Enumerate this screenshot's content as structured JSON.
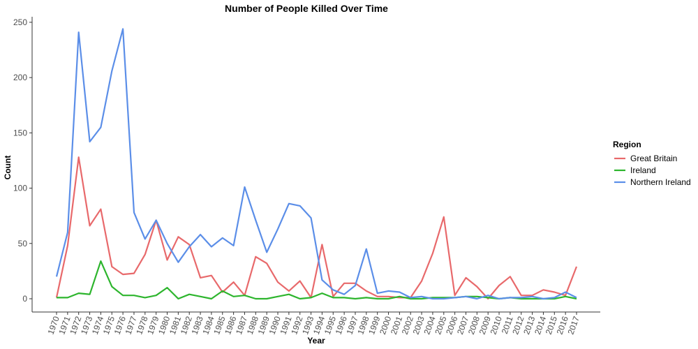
{
  "chart_data": {
    "type": "line",
    "title": "Number of People Killed Over Time",
    "xlabel": "Year",
    "ylabel": "Count",
    "legend_title": "Region",
    "legend_position": "right",
    "grid": false,
    "ylim": [
      -12,
      255
    ],
    "yticks": [
      0,
      50,
      100,
      150,
      200,
      250
    ],
    "x": [
      1970,
      1971,
      1972,
      1973,
      1974,
      1975,
      1976,
      1977,
      1978,
      1979,
      1980,
      1981,
      1982,
      1983,
      1984,
      1985,
      1986,
      1987,
      1988,
      1989,
      1990,
      1991,
      1992,
      1993,
      1994,
      1995,
      1996,
      1997,
      1998,
      1999,
      2000,
      2001,
      2002,
      2003,
      2004,
      2005,
      2006,
      2007,
      2008,
      2009,
      2010,
      2011,
      2012,
      2013,
      2014,
      2015,
      2016,
      2017
    ],
    "x_tick_labels": [
      "1970",
      "1971",
      "1972",
      "1973",
      "1974",
      "1975",
      "1976",
      "1977",
      "1978",
      "1979",
      "1980",
      "1981",
      "1982",
      "1983",
      "1984",
      "1985",
      "1986",
      "1987",
      "1988",
      "1989",
      "1990",
      "1991",
      "1992",
      "1993",
      "1994",
      "1995",
      "1996",
      "1997",
      "1998",
      "1999",
      "2000",
      "2001",
      "2002",
      "2003",
      "2004",
      "2005",
      "2006",
      "2007",
      "2008",
      "2009",
      "2010",
      "2011",
      "2012",
      "2013",
      "2014",
      "2015",
      "2016",
      "2017"
    ],
    "series": [
      {
        "name": "Great Britain",
        "color": "#e8696b",
        "values": [
          1,
          48,
          128,
          66,
          81,
          29,
          22,
          23,
          40,
          71,
          35,
          56,
          49,
          19,
          21,
          6,
          15,
          3,
          38,
          32,
          15,
          7,
          16,
          1,
          49,
          2,
          14,
          14,
          7,
          2,
          2,
          1,
          1,
          16,
          41,
          74,
          3,
          19,
          11,
          0,
          12,
          20,
          3,
          3,
          8,
          6,
          3,
          29
        ]
      },
      {
        "name": "Ireland",
        "color": "#2db52d",
        "values": [
          1,
          1,
          5,
          4,
          34,
          11,
          3,
          3,
          1,
          3,
          10,
          0,
          4,
          2,
          0,
          7,
          2,
          3,
          0,
          0,
          2,
          4,
          0,
          1,
          5,
          1,
          1,
          0,
          1,
          0,
          0,
          2,
          0,
          0,
          1,
          1,
          1,
          2,
          2,
          1,
          0,
          1,
          0,
          0,
          0,
          0,
          2,
          0
        ]
      },
      {
        "name": "Northern Ireland",
        "color": "#5b8ee8",
        "values": [
          20,
          60,
          241,
          142,
          155,
          206,
          244,
          78,
          54,
          71,
          50,
          33,
          47,
          58,
          47,
          55,
          48,
          101,
          71,
          42,
          63,
          86,
          84,
          73,
          17,
          8,
          4,
          12,
          45,
          5,
          7,
          6,
          1,
          2,
          0,
          0,
          1,
          2,
          0,
          3,
          0,
          1,
          1,
          2,
          0,
          1,
          6,
          1
        ]
      }
    ]
  }
}
